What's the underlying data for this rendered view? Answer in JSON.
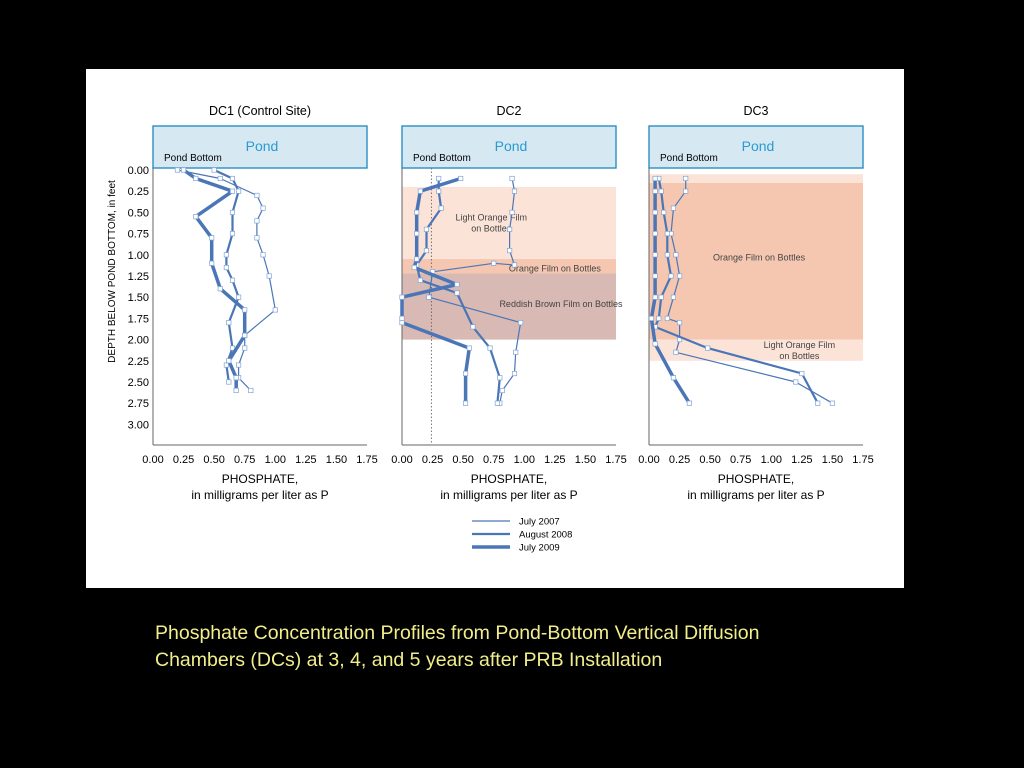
{
  "slide": {
    "caption_line1": "Phosphate Concentration Profiles from Pond-Bottom Vertical Diffusion",
    "caption_line2": "Chambers (DCs) at 3, 4, and 5 years after PRB Installation",
    "caption_color": "#f2ef8a",
    "background": "#000000"
  },
  "colors": {
    "pond_fill": "#d6e9f3",
    "pond_text": "#2a9ad0",
    "line": "#4a76b8",
    "light_orange": "#fbe3d8",
    "orange": "#f5c7b1",
    "reddish_brown": "#d9b9b3"
  },
  "chart_data": [
    {
      "type": "line",
      "title": "DC1 (Control Site)",
      "pond_label": "Pond",
      "pond_bottom_label": "Pond Bottom",
      "ylabel": "DEPTH BELOW POND BOTTOM, in feet",
      "xlabel_line1": "PHOSPHATE,",
      "xlabel_line2": "in milligrams per liter as P",
      "xlim": [
        0,
        1.75
      ],
      "ylim": [
        0,
        3.0
      ],
      "y_inverted": true,
      "x_ticks": [
        "0.00",
        "0.25",
        "0.50",
        "0.75",
        "1.00",
        "1.25",
        "1.50",
        "1.75"
      ],
      "y_ticks": [
        "0.00",
        "0.25",
        "0.50",
        "0.75",
        "1.00",
        "1.25",
        "1.50",
        "1.75",
        "2.00",
        "2.25",
        "2.50",
        "2.75",
        "3.00"
      ],
      "bands": [],
      "reference_line": null,
      "series": [
        {
          "name": "July 2007",
          "width": 1.2,
          "x": [
            0.2,
            0.55,
            0.85,
            0.9,
            0.85,
            0.85,
            0.9,
            0.95,
            1.0,
            0.75,
            0.75,
            0.7,
            0.7,
            0.8
          ],
          "y": [
            0.0,
            0.1,
            0.3,
            0.45,
            0.6,
            0.8,
            1.0,
            1.25,
            1.65,
            1.95,
            2.1,
            2.3,
            2.45,
            2.6
          ]
        },
        {
          "name": "August 2008",
          "width": 2.2,
          "x": [
            0.5,
            0.65,
            0.7,
            0.65,
            0.65,
            0.6,
            0.6,
            0.65,
            0.7,
            0.62,
            0.65,
            0.6,
            0.62
          ],
          "y": [
            0.0,
            0.1,
            0.25,
            0.5,
            0.75,
            1.0,
            1.15,
            1.3,
            1.5,
            1.8,
            2.1,
            2.3,
            2.5
          ]
        },
        {
          "name": "July 2009",
          "width": 3.5,
          "x": [
            0.25,
            0.35,
            0.65,
            0.35,
            0.48,
            0.48,
            0.55,
            0.75,
            0.75,
            0.62,
            0.68,
            0.68
          ],
          "y": [
            0.0,
            0.1,
            0.25,
            0.55,
            0.8,
            1.1,
            1.4,
            1.65,
            1.95,
            2.25,
            2.45,
            2.6
          ]
        }
      ]
    },
    {
      "type": "line",
      "title": "DC2",
      "pond_label": "Pond",
      "pond_bottom_label": "Pond Bottom",
      "xlabel_line1": "PHOSPHATE,",
      "xlabel_line2": "in milligrams per liter as P",
      "xlim": [
        0,
        1.75
      ],
      "ylim": [
        0,
        3.0
      ],
      "y_inverted": true,
      "x_ticks": [
        "0.00",
        "0.25",
        "0.50",
        "0.75",
        "1.00",
        "1.25",
        "1.50",
        "1.75"
      ],
      "bands": [
        {
          "from": 0.2,
          "to": 1.05,
          "color": "light_orange",
          "label_lines": [
            "Light Orange Film",
            "on Bottles"
          ],
          "label_x": 0.73,
          "label_y": 0.55
        },
        {
          "from": 1.05,
          "to": 1.22,
          "color": "orange",
          "label_lines": [
            "Orange Film on Bottles"
          ],
          "label_x": 1.25,
          "label_y": 1.15
        },
        {
          "from": 1.22,
          "to": 2.0,
          "color": "reddish_brown",
          "label_lines": [
            "Reddish Brown Film on Bottles"
          ],
          "label_x": 1.3,
          "label_y": 1.57
        }
      ],
      "reference_line": 0.24,
      "series": [
        {
          "name": "July 2007",
          "width": 1.2,
          "x": [
            0.9,
            0.92,
            0.9,
            0.88,
            0.88,
            0.92,
            0.75,
            0.25,
            0.22,
            0.97,
            0.93,
            0.92,
            0.82,
            0.8
          ],
          "y": [
            0.1,
            0.25,
            0.5,
            0.7,
            0.95,
            1.12,
            1.1,
            1.2,
            1.5,
            1.8,
            2.15,
            2.4,
            2.6,
            2.75
          ]
        },
        {
          "name": "August 2008",
          "width": 2.2,
          "x": [
            0.3,
            0.3,
            0.32,
            0.2,
            0.2,
            0.12,
            0.15,
            0.45,
            0.58,
            0.72,
            0.8,
            0.78
          ],
          "y": [
            0.1,
            0.25,
            0.45,
            0.7,
            0.95,
            1.12,
            1.3,
            1.45,
            1.85,
            2.1,
            2.45,
            2.75
          ]
        },
        {
          "name": "July 2009",
          "width": 3.5,
          "x": [
            0.48,
            0.15,
            0.12,
            0.12,
            0.12,
            0.1,
            0.45,
            0.0,
            0.0,
            0.0,
            0.55,
            0.52,
            0.52
          ],
          "y": [
            0.1,
            0.25,
            0.5,
            0.75,
            1.05,
            1.15,
            1.35,
            1.5,
            1.75,
            1.8,
            2.1,
            2.4,
            2.75
          ]
        }
      ]
    },
    {
      "type": "line",
      "title": "DC3",
      "pond_label": "Pond",
      "pond_bottom_label": "Pond Bottom",
      "xlabel_line1": "PHOSPHATE,",
      "xlabel_line2": "in milligrams per liter as P",
      "xlim": [
        0,
        1.75
      ],
      "ylim": [
        0,
        3.0
      ],
      "y_inverted": true,
      "x_ticks": [
        "0.00",
        "0.25",
        "0.50",
        "0.75",
        "1.00",
        "1.25",
        "1.50",
        "1.75"
      ],
      "bands": [
        {
          "from": 0.15,
          "to": 2.0,
          "color": "orange",
          "label_lines": [
            "Orange Film on Bottles"
          ],
          "label_x": 0.9,
          "label_y": 1.02
        },
        {
          "from": 2.0,
          "to": 2.25,
          "color": "light_orange",
          "label_lines": [
            "Light Orange Film",
            "on Bottles"
          ],
          "label_x": 1.23,
          "label_y": 2.05
        },
        {
          "from": 0.05,
          "to": 0.15,
          "color": "light_orange",
          "label_lines": [],
          "label_x": 0,
          "label_y": 0
        }
      ],
      "reference_line": null,
      "series": [
        {
          "name": "July 2007",
          "width": 1.2,
          "x": [
            0.3,
            0.3,
            0.2,
            0.18,
            0.22,
            0.25,
            0.2,
            0.15,
            0.25,
            0.25,
            0.22,
            1.2,
            1.5
          ],
          "y": [
            0.1,
            0.25,
            0.45,
            0.75,
            1.0,
            1.25,
            1.5,
            1.75,
            1.8,
            2.0,
            2.15,
            2.5,
            2.75
          ]
        },
        {
          "name": "August 2008",
          "width": 2.2,
          "x": [
            0.08,
            0.1,
            0.12,
            0.15,
            0.15,
            0.18,
            0.1,
            0.08,
            0.05,
            0.48,
            1.25,
            1.38
          ],
          "y": [
            0.1,
            0.25,
            0.5,
            0.75,
            1.0,
            1.25,
            1.5,
            1.75,
            1.85,
            2.1,
            2.4,
            2.75
          ]
        },
        {
          "name": "July 2009",
          "width": 3.5,
          "x": [
            0.05,
            0.05,
            0.05,
            0.05,
            0.05,
            0.05,
            0.05,
            0.02,
            0.05,
            0.2,
            0.33
          ],
          "y": [
            0.1,
            0.25,
            0.5,
            0.75,
            1.0,
            1.25,
            1.5,
            1.75,
            2.05,
            2.45,
            2.75
          ]
        }
      ]
    }
  ],
  "legend": [
    {
      "label": "July 2007",
      "width": 1.2
    },
    {
      "label": "August 2008",
      "width": 2.2
    },
    {
      "label": "July 2009",
      "width": 3.5
    }
  ]
}
